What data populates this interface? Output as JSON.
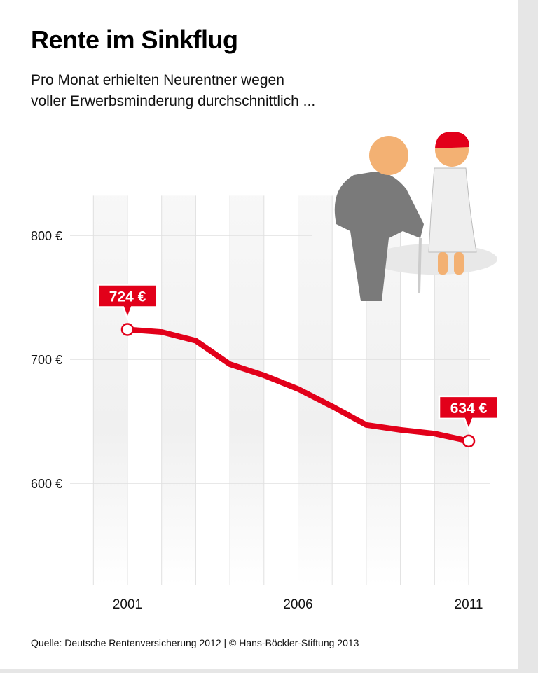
{
  "title": "Rente im Sinkflug",
  "subtitle_lines": [
    "Pro Monat erhielten Neurentner wegen",
    "voller Erwerbsminderung durchschnittlich ..."
  ],
  "source": "Quelle: Deutsche Rentenversicherung 2012 | © Hans-Böckler-Stiftung 2013",
  "colors": {
    "line": "#e2001a",
    "grid": "#e0e0e0",
    "band": "#f0f0f0"
  },
  "chart_data": {
    "type": "line",
    "x": [
      2001,
      2002,
      2003,
      2004,
      2005,
      2006,
      2007,
      2008,
      2009,
      2010,
      2011
    ],
    "values": [
      724,
      722,
      715,
      696,
      687,
      676,
      662,
      647,
      643,
      640,
      634
    ],
    "ylim": [
      518,
      832
    ],
    "yticks": [
      600,
      700,
      800
    ],
    "ytick_labels": [
      "600 €",
      "700 €",
      "800 €"
    ],
    "xticks": [
      2001,
      2006,
      2011
    ],
    "xtick_labels": [
      "2001",
      "2006",
      "2011"
    ],
    "annotations": [
      {
        "x": 2001,
        "label": "724 €"
      },
      {
        "x": 2011,
        "label": "634 €"
      }
    ],
    "grid": true
  }
}
